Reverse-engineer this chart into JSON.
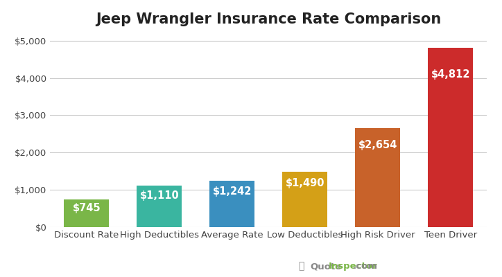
{
  "title": "Jeep Wrangler Insurance Rate Comparison",
  "categories": [
    "Discount Rate",
    "High Deductibles",
    "Average Rate",
    "Low Deductibles",
    "High Risk Driver",
    "Teen Driver"
  ],
  "values": [
    745,
    1110,
    1242,
    1490,
    2654,
    4812
  ],
  "labels": [
    "$745",
    "$1,110",
    "$1,242",
    "$1,490",
    "$2,654",
    "$4,812"
  ],
  "bar_colors": [
    "#7ab648",
    "#3ab5a0",
    "#3a8fbf",
    "#d4a017",
    "#c8622a",
    "#cc2b2b"
  ],
  "ylim": [
    0,
    5200
  ],
  "yticks": [
    0,
    1000,
    2000,
    3000,
    4000,
    5000
  ],
  "ytick_labels": [
    "$0",
    "$1,000",
    "$2,000",
    "$3,000",
    "$4,000",
    "$5,000"
  ],
  "background_color": "#ffffff",
  "grid_color": "#cccccc",
  "label_color": "#ffffff",
  "title_fontsize": 15,
  "label_fontsize": 10.5,
  "tick_fontsize": 9.5,
  "bar_width": 0.62
}
